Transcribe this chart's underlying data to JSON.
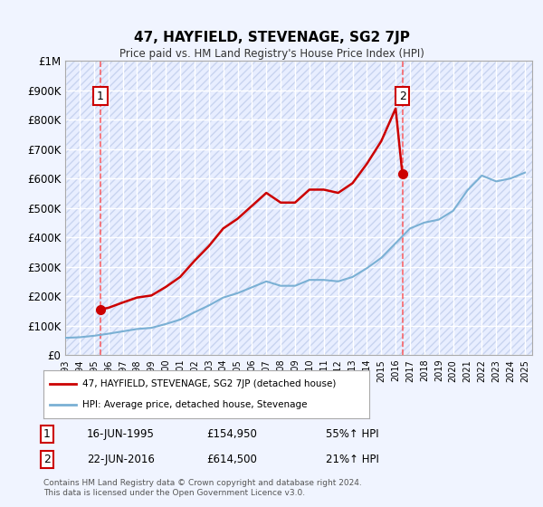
{
  "title": "47, HAYFIELD, STEVENAGE, SG2 7JP",
  "subtitle": "Price paid vs. HM Land Registry's House Price Index (HPI)",
  "background_color": "#f0f4ff",
  "plot_bg_color": "#e8eeff",
  "hatch_color": "#c8d4f0",
  "red_line_color": "#cc0000",
  "blue_line_color": "#7ab0d4",
  "dashed_red": "#ff4444",
  "legend_label_red": "47, HAYFIELD, STEVENAGE, SG2 7JP (detached house)",
  "legend_label_blue": "HPI: Average price, detached house, Stevenage",
  "transaction1": {
    "date": "16-JUN-1995",
    "price": 154950,
    "pct": "55%↑ HPI",
    "label": "1"
  },
  "transaction2": {
    "date": "22-JUN-2016",
    "price": 614500,
    "pct": "21%↑ HPI",
    "label": "2"
  },
  "footnote": "Contains HM Land Registry data © Crown copyright and database right 2024.\nThis data is licensed under the Open Government Licence v3.0.",
  "ylim": [
    0,
    1000000
  ],
  "yticks": [
    0,
    100000,
    200000,
    300000,
    400000,
    500000,
    600000,
    700000,
    800000,
    900000,
    1000000
  ],
  "ytick_labels": [
    "£0",
    "£100K",
    "£200K",
    "£300K",
    "£400K",
    "£500K",
    "£600K",
    "£700K",
    "£800K",
    "£900K",
    "£1M"
  ],
  "hpi_years": [
    1993,
    1994,
    1995,
    1996,
    1997,
    1998,
    1999,
    2000,
    2001,
    2002,
    2003,
    2004,
    2005,
    2006,
    2007,
    2008,
    2009,
    2010,
    2011,
    2012,
    2013,
    2014,
    2015,
    2016,
    2017,
    2018,
    2019,
    2020,
    2021,
    2022,
    2023,
    2024,
    2025
  ],
  "hpi_values": [
    58000,
    60000,
    65000,
    72000,
    80000,
    88000,
    92000,
    105000,
    120000,
    145000,
    168000,
    195000,
    210000,
    230000,
    250000,
    235000,
    235000,
    255000,
    255000,
    250000,
    265000,
    295000,
    330000,
    380000,
    430000,
    450000,
    460000,
    490000,
    560000,
    610000,
    590000,
    600000,
    620000
  ],
  "price_paid_years": [
    1995.46,
    2016.47
  ],
  "price_paid_values": [
    154950,
    614500
  ],
  "red_line_x": [
    1995.46,
    1996,
    1997,
    1998,
    1999,
    2000,
    2001,
    2002,
    2003,
    2004,
    2005,
    2006,
    2007,
    2008,
    2009,
    2010,
    2011,
    2012,
    2013,
    2014,
    2015,
    2016,
    2016.47
  ],
  "red_line_y": [
    154950,
    160000,
    178000,
    195000,
    202000,
    231000,
    265000,
    320000,
    370000,
    430000,
    463000,
    507000,
    551000,
    518000,
    518000,
    562000,
    562000,
    551000,
    584000,
    650000,
    727000,
    838000,
    614500
  ],
  "vline1_x": 1995.46,
  "vline2_x": 2016.47,
  "xmin": 1993,
  "xmax": 2025.5,
  "xtick_years": [
    1993,
    1994,
    1995,
    1996,
    1997,
    1998,
    1999,
    2000,
    2001,
    2002,
    2003,
    2004,
    2005,
    2006,
    2007,
    2008,
    2009,
    2010,
    2011,
    2012,
    2013,
    2014,
    2015,
    2016,
    2017,
    2018,
    2019,
    2020,
    2021,
    2022,
    2023,
    2024,
    2025
  ]
}
